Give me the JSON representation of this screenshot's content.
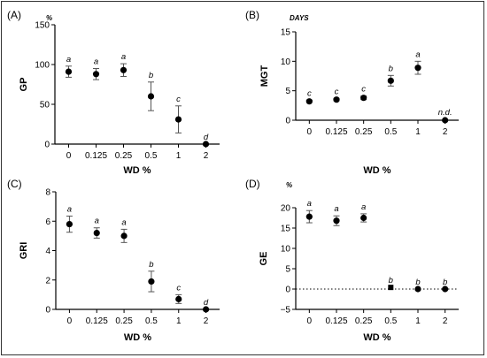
{
  "chart_data": [
    {
      "type": "scatter",
      "panel_label": "(A)",
      "ylabel": "GP",
      "unit": "%",
      "xlabel": "WD %",
      "categories": [
        "0",
        "0.125",
        "0.25",
        "0.5",
        "1",
        "2"
      ],
      "values": [
        91,
        88,
        93,
        60,
        31,
        0
      ],
      "errors": [
        7,
        7,
        8,
        18,
        17,
        0
      ],
      "letters": [
        "a",
        "a",
        "a",
        "b",
        "c",
        "d"
      ],
      "ylim": [
        0,
        150
      ],
      "yticks": [
        "0",
        "50",
        "100",
        "150"
      ],
      "y_zero_line": false
    },
    {
      "type": "scatter",
      "panel_label": "(B)",
      "ylabel": "MGT",
      "unit": "DAYS",
      "xlabel": "WD %",
      "categories": [
        "0",
        "0.125",
        "0.25",
        "0.5",
        "1",
        "2"
      ],
      "values": [
        3.2,
        3.5,
        3.8,
        6.7,
        8.9,
        0
      ],
      "errors": [
        0.2,
        0.2,
        0.3,
        0.9,
        1.1,
        0
      ],
      "letters": [
        "c",
        "c",
        "c",
        "b",
        "a",
        "n.d."
      ],
      "ylim": [
        0,
        15
      ],
      "yticks": [
        "0",
        "5",
        "10",
        "15"
      ],
      "y_zero_line": false
    },
    {
      "type": "scatter",
      "panel_label": "(C)",
      "ylabel": "GRI",
      "unit": "",
      "xlabel": "WD %",
      "categories": [
        "0",
        "0.125",
        "0.25",
        "0.5",
        "1",
        "2"
      ],
      "values": [
        5.8,
        5.2,
        5.0,
        1.9,
        0.7,
        0
      ],
      "errors": [
        0.55,
        0.35,
        0.45,
        0.7,
        0.3,
        0
      ],
      "letters": [
        "a",
        "a",
        "a",
        "b",
        "c",
        "d"
      ],
      "ylim": [
        0,
        8
      ],
      "yticks": [
        "0",
        "2",
        "4",
        "6",
        "8"
      ],
      "y_zero_line": false
    },
    {
      "type": "scatter",
      "panel_label": "(D)",
      "ylabel": "GE",
      "unit": "%",
      "xlabel": "WD %",
      "categories": [
        "0",
        "0.125",
        "0.25",
        "0.5",
        "1",
        "2"
      ],
      "values": [
        17.8,
        16.8,
        17.5,
        0.4,
        0,
        0
      ],
      "errors": [
        1.5,
        1.2,
        1.0,
        0,
        0,
        0
      ],
      "letters": [
        "a",
        "a",
        "a",
        "b",
        "b",
        "b"
      ],
      "ylim": [
        -5,
        20
      ],
      "yticks": [
        "−5",
        "0",
        "5",
        "10",
        "15",
        "20"
      ],
      "y_zero_line": true
    }
  ]
}
